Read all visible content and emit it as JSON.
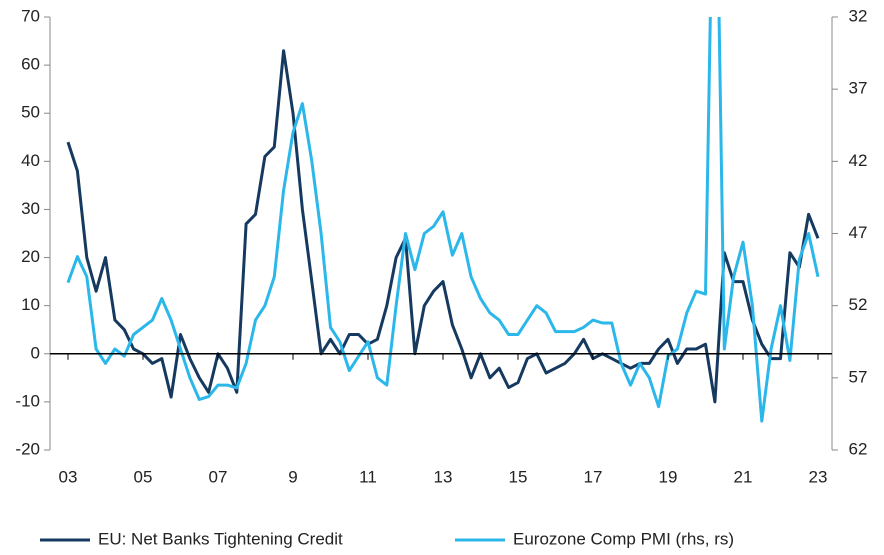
{
  "chart_data": {
    "type": "line",
    "x": [
      3,
      3.25,
      3.5,
      3.75,
      4,
      4.25,
      4.5,
      4.75,
      5,
      5.25,
      5.5,
      5.75,
      6,
      6.25,
      6.5,
      6.75,
      7,
      7.25,
      7.5,
      7.75,
      8,
      8.25,
      8.5,
      8.75,
      9,
      9.25,
      9.5,
      9.75,
      10,
      10.25,
      10.5,
      10.75,
      11,
      11.25,
      11.5,
      11.75,
      12,
      12.25,
      12.5,
      12.75,
      13,
      13.25,
      13.5,
      13.75,
      14,
      14.25,
      14.5,
      14.75,
      15,
      15.25,
      15.5,
      15.75,
      16,
      16.25,
      16.5,
      16.75,
      17,
      17.25,
      17.5,
      17.75,
      18,
      18.25,
      18.5,
      18.75,
      19,
      19.25,
      19.5,
      19.75,
      20,
      20.25,
      20.5,
      20.75,
      21,
      21.25,
      21.5,
      21.75,
      22,
      22.25,
      22.5,
      22.75,
      23
    ],
    "series": [
      {
        "name": "EU: Net Banks Tightening Credit",
        "color": "#163a5f",
        "values": [
          44,
          38,
          20,
          13,
          20,
          7,
          5,
          1,
          0,
          -2,
          -1,
          -9,
          4,
          -1,
          -5,
          -8,
          0,
          -3,
          -8,
          27,
          29,
          41,
          43,
          63,
          50,
          30,
          15,
          0,
          3,
          0,
          4,
          4,
          2,
          3,
          10,
          20,
          24,
          0,
          10,
          13,
          15,
          6,
          1,
          -5,
          0,
          -5,
          -3,
          -7,
          -6,
          -1,
          0,
          -4,
          -3,
          -2,
          0,
          3,
          -1,
          0,
          -1,
          -2,
          -3,
          -2,
          -2,
          1,
          3,
          -2,
          1,
          1,
          2,
          -10,
          21,
          15,
          15,
          7,
          2,
          -1,
          -1,
          21,
          18,
          29,
          24
        ]
      },
      {
        "name": "Eurozone Comp PMI (rhs, rs)",
        "color": "#2bb7ea",
        "axis": "y2",
        "values": [
          50.4,
          48.6,
          50,
          55,
          56,
          55,
          55.5,
          54,
          53.5,
          53,
          51.5,
          53,
          55,
          57,
          58.5,
          58.3,
          57.5,
          57.5,
          57.7,
          56,
          53,
          52,
          50,
          44,
          40,
          38,
          42,
          47,
          53.5,
          54.5,
          56.5,
          55.5,
          54.5,
          57,
          57.5,
          52,
          47,
          49.5,
          47,
          46.5,
          45.5,
          48.5,
          47,
          50,
          51.5,
          52.5,
          53,
          54,
          54,
          53,
          52,
          52.5,
          53.8,
          53.8,
          53.8,
          53.5,
          53,
          53.2,
          53.2,
          56,
          57.5,
          56,
          57,
          59,
          55.5,
          55,
          52.5,
          51,
          51.2,
          13.6,
          55,
          50,
          47.6,
          52,
          60,
          55,
          52,
          55.8,
          48.8,
          47,
          50
        ]
      }
    ],
    "xlim": [
      3,
      23
    ],
    "xticks": [
      {
        "value": 3,
        "label": "03"
      },
      {
        "value": 5,
        "label": "05"
      },
      {
        "value": 7,
        "label": "07"
      },
      9,
      11,
      13,
      15,
      17,
      19,
      21,
      23
    ],
    "ylim": [
      -20,
      70
    ],
    "yticks": [
      -20,
      -10,
      0,
      10,
      20,
      30,
      40,
      50,
      60,
      70
    ],
    "y2lim": [
      62,
      32
    ],
    "y2ticks": [
      32,
      37,
      42,
      47,
      52,
      57,
      62
    ],
    "legend": "bottom"
  }
}
